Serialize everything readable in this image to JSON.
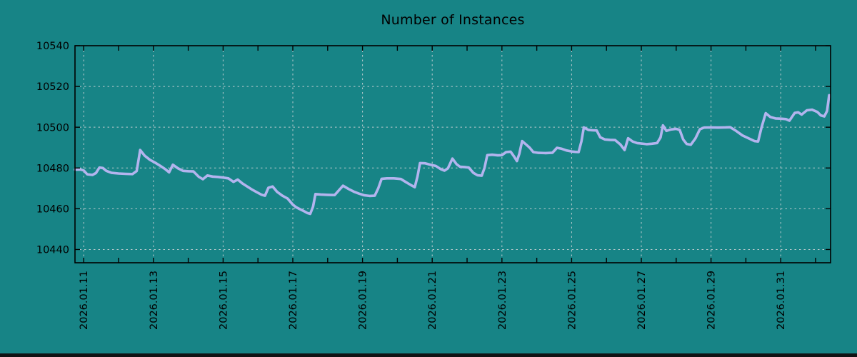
{
  "title": "Number of Instances",
  "colors": {
    "background": "#178486",
    "line": "#b3b4ee",
    "grid": "#cdd3d6",
    "axis": "#000000",
    "text": "#000000",
    "bottom_bar": "#101314"
  },
  "chart_data": {
    "type": "line",
    "title": "Number of Instances",
    "xlabel": "",
    "ylabel": "",
    "grid": true,
    "legend": "none",
    "y_ticks": [
      10440,
      10460,
      10480,
      10500,
      10520,
      10540
    ],
    "y_range": [
      10433.5,
      10540
    ],
    "x_range_days": [
      -0.25,
      21.43
    ],
    "x_tick_labels": [
      "2026.01.11",
      "2026.01.13",
      "2026.01.15",
      "2026.01.17",
      "2026.01.19",
      "2026.01.21",
      "2026.01.23",
      "2026.01.25",
      "2026.01.27",
      "2026.01.29",
      "2026.01.31"
    ],
    "x_label_positions_days": [
      0,
      2,
      4,
      6,
      8,
      10,
      12,
      14,
      16,
      18,
      20
    ],
    "x_minor_tick_days": [
      0,
      1,
      2,
      3,
      4,
      5,
      6,
      7,
      8,
      9,
      10,
      11,
      12,
      13,
      14,
      15,
      16,
      17,
      18,
      19,
      20,
      21
    ],
    "series": [
      {
        "name": "instances",
        "points": [
          [
            -0.25,
            10479.2
          ],
          [
            -0.1,
            10479.3
          ],
          [
            0,
            10478.8
          ],
          [
            0.1,
            10476.9
          ],
          [
            0.25,
            10476.6
          ],
          [
            0.35,
            10477.5
          ],
          [
            0.45,
            10480.2
          ],
          [
            0.55,
            10480.0
          ],
          [
            0.65,
            10478.6
          ],
          [
            0.8,
            10477.6
          ],
          [
            1.0,
            10477.3
          ],
          [
            1.2,
            10477.1
          ],
          [
            1.4,
            10477.0
          ],
          [
            1.52,
            10478.5
          ],
          [
            1.62,
            10488.8
          ],
          [
            1.75,
            10486.0
          ],
          [
            1.9,
            10484.0
          ],
          [
            2.05,
            10482.6
          ],
          [
            2.2,
            10481.0
          ],
          [
            2.35,
            10479.3
          ],
          [
            2.45,
            10477.9
          ],
          [
            2.56,
            10481.6
          ],
          [
            2.7,
            10479.9
          ],
          [
            2.85,
            10478.6
          ],
          [
            3.0,
            10478.4
          ],
          [
            3.15,
            10478.3
          ],
          [
            3.3,
            10475.7
          ],
          [
            3.42,
            10474.5
          ],
          [
            3.55,
            10476.3
          ],
          [
            3.7,
            10475.8
          ],
          [
            3.85,
            10475.6
          ],
          [
            4.0,
            10475.3
          ],
          [
            4.15,
            10474.9
          ],
          [
            4.3,
            10473.2
          ],
          [
            4.42,
            10474.3
          ],
          [
            4.55,
            10472.5
          ],
          [
            4.7,
            10470.8
          ],
          [
            4.85,
            10469.2
          ],
          [
            5.0,
            10467.8
          ],
          [
            5.1,
            10466.9
          ],
          [
            5.2,
            10466.4
          ],
          [
            5.3,
            10470.3
          ],
          [
            5.42,
            10470.9
          ],
          [
            5.55,
            10468.3
          ],
          [
            5.7,
            10466.4
          ],
          [
            5.85,
            10465.0
          ],
          [
            6.0,
            10462.0
          ],
          [
            6.1,
            10460.7
          ],
          [
            6.2,
            10459.8
          ],
          [
            6.3,
            10459.0
          ],
          [
            6.42,
            10457.9
          ],
          [
            6.5,
            10457.5
          ],
          [
            6.58,
            10461.0
          ],
          [
            6.65,
            10467.2
          ],
          [
            6.8,
            10467.0
          ],
          [
            7.0,
            10466.8
          ],
          [
            7.2,
            10466.7
          ],
          [
            7.32,
            10469.0
          ],
          [
            7.44,
            10471.3
          ],
          [
            7.6,
            10469.7
          ],
          [
            7.75,
            10468.4
          ],
          [
            7.9,
            10467.4
          ],
          [
            8.05,
            10466.6
          ],
          [
            8.2,
            10466.3
          ],
          [
            8.35,
            10466.4
          ],
          [
            8.45,
            10470.0
          ],
          [
            8.55,
            10474.7
          ],
          [
            8.7,
            10474.9
          ],
          [
            8.9,
            10474.9
          ],
          [
            9.1,
            10474.6
          ],
          [
            9.25,
            10473.0
          ],
          [
            9.4,
            10471.5
          ],
          [
            9.5,
            10470.6
          ],
          [
            9.58,
            10476.0
          ],
          [
            9.65,
            10482.4
          ],
          [
            9.8,
            10482.3
          ],
          [
            9.95,
            10481.6
          ],
          [
            10.1,
            10481.0
          ],
          [
            10.25,
            10479.4
          ],
          [
            10.35,
            10478.7
          ],
          [
            10.45,
            10479.8
          ],
          [
            10.58,
            10484.6
          ],
          [
            10.7,
            10481.8
          ],
          [
            10.8,
            10480.6
          ],
          [
            10.95,
            10480.4
          ],
          [
            11.05,
            10480.2
          ],
          [
            11.18,
            10477.6
          ],
          [
            11.3,
            10476.4
          ],
          [
            11.42,
            10476.2
          ],
          [
            11.5,
            10480.0
          ],
          [
            11.58,
            10486.3
          ],
          [
            11.72,
            10486.5
          ],
          [
            11.88,
            10486.2
          ],
          [
            12.0,
            10486.3
          ],
          [
            12.12,
            10487.8
          ],
          [
            12.25,
            10488.0
          ],
          [
            12.35,
            10485.6
          ],
          [
            12.43,
            10483.4
          ],
          [
            12.5,
            10487.0
          ],
          [
            12.58,
            10493.2
          ],
          [
            12.7,
            10491.4
          ],
          [
            12.8,
            10489.9
          ],
          [
            12.9,
            10487.8
          ],
          [
            13.05,
            10487.4
          ],
          [
            13.25,
            10487.3
          ],
          [
            13.45,
            10487.5
          ],
          [
            13.58,
            10489.9
          ],
          [
            13.72,
            10489.4
          ],
          [
            13.85,
            10488.6
          ],
          [
            14.0,
            10488.1
          ],
          [
            14.1,
            10487.9
          ],
          [
            14.2,
            10487.8
          ],
          [
            14.28,
            10493.0
          ],
          [
            14.35,
            10499.9
          ],
          [
            14.48,
            10498.7
          ],
          [
            14.6,
            10498.5
          ],
          [
            14.72,
            10498.4
          ],
          [
            14.82,
            10495.1
          ],
          [
            14.95,
            10494.0
          ],
          [
            15.1,
            10493.8
          ],
          [
            15.25,
            10493.7
          ],
          [
            15.4,
            10491.5
          ],
          [
            15.52,
            10488.8
          ],
          [
            15.62,
            10494.6
          ],
          [
            15.75,
            10493.0
          ],
          [
            15.88,
            10492.2
          ],
          [
            16.0,
            10492.0
          ],
          [
            16.15,
            10491.7
          ],
          [
            16.3,
            10491.9
          ],
          [
            16.45,
            10492.2
          ],
          [
            16.55,
            10495.0
          ],
          [
            16.62,
            10500.9
          ],
          [
            16.72,
            10498.2
          ],
          [
            16.85,
            10498.9
          ],
          [
            17.0,
            10499.2
          ],
          [
            17.1,
            10498.7
          ],
          [
            17.2,
            10494.0
          ],
          [
            17.3,
            10491.8
          ],
          [
            17.42,
            10491.4
          ],
          [
            17.55,
            10494.5
          ],
          [
            17.68,
            10499.0
          ],
          [
            17.8,
            10499.8
          ],
          [
            18.0,
            10499.9
          ],
          [
            18.2,
            10499.8
          ],
          [
            18.4,
            10499.9
          ],
          [
            18.55,
            10500.0
          ],
          [
            18.7,
            10498.4
          ],
          [
            18.9,
            10496.0
          ],
          [
            19.1,
            10494.4
          ],
          [
            19.25,
            10493.2
          ],
          [
            19.35,
            10493.0
          ],
          [
            19.45,
            10500.0
          ],
          [
            19.57,
            10506.9
          ],
          [
            19.7,
            10505.0
          ],
          [
            19.85,
            10504.3
          ],
          [
            20.0,
            10504.2
          ],
          [
            20.15,
            10504.0
          ],
          [
            20.25,
            10503.2
          ],
          [
            20.4,
            10507.0
          ],
          [
            20.5,
            10507.3
          ],
          [
            20.6,
            10506.2
          ],
          [
            20.75,
            10508.3
          ],
          [
            20.9,
            10508.6
          ],
          [
            21.05,
            10507.5
          ],
          [
            21.15,
            10505.8
          ],
          [
            21.25,
            10505.3
          ],
          [
            21.33,
            10508.0
          ],
          [
            21.39,
            10515.7
          ]
        ]
      }
    ]
  }
}
